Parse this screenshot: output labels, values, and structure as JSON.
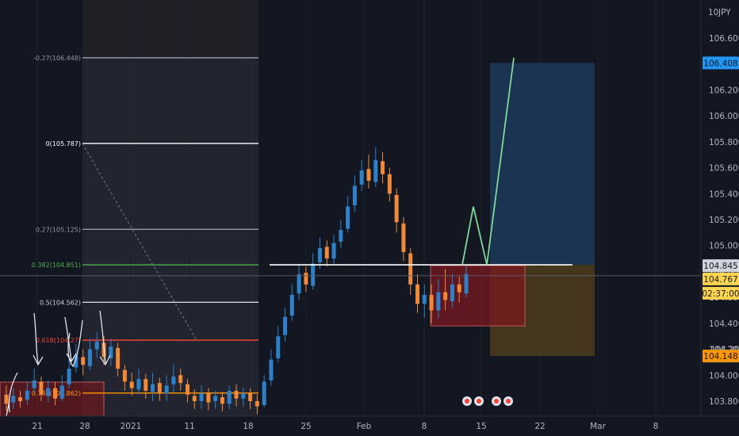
{
  "chart_data": {
    "type": "candlestick",
    "symbol_currency": "JPY",
    "price_axis": {
      "min": 103.7,
      "max": 106.85,
      "ticks": [
        "106.600",
        "106.400",
        "106.200",
        "106.000",
        "105.800",
        "105.600",
        "105.400",
        "105.200",
        "105.000",
        "104.800",
        "104.600",
        "104.400",
        "104.200",
        "104.000",
        "103.800"
      ],
      "labels": {
        "target": {
          "text": "106.408",
          "value": 106.408,
          "color": "#2196f3"
        },
        "level": {
          "text": "104.845",
          "value": 104.845,
          "color": "#d1d4dc"
        },
        "last": {
          "text": "104.767",
          "value": 104.767,
          "color": "#ffd54f"
        },
        "countdown": {
          "text": "02:37:00",
          "color": "#ffd54f"
        },
        "stop": {
          "text": "104.148",
          "value": 104.148,
          "color": "#ff9800"
        },
        "top_partial": "10",
        "hidden_tick": "104.200"
      }
    },
    "time_axis": {
      "ticks": [
        "21",
        "28",
        "2021",
        "11",
        "18",
        "25",
        "Feb",
        "8",
        "15",
        "22",
        "Mar",
        "8"
      ]
    },
    "fibonacci": [
      {
        "label": "-0.27(106.448)",
        "value": 106.448,
        "color": "#9598a1"
      },
      {
        "label": "0(105.787)",
        "value": 105.787,
        "color": "#ffffff"
      },
      {
        "label": "0.27(105.125)",
        "value": 105.125,
        "color": "#9598a1"
      },
      {
        "label": "0.382(104.851)",
        "value": 104.851,
        "color": "#4caf50"
      },
      {
        "label": "0.5(104.562)",
        "value": 104.562,
        "color": "#d1d4dc"
      },
      {
        "label": "0.618(104.27)",
        "value": 104.27,
        "color": "#f44336"
      },
      {
        "label": "0.786(103.862)",
        "value": 103.862,
        "color": "#ff9800"
      }
    ],
    "horizontal_level": 104.851,
    "position": {
      "entry": 104.851,
      "target": 106.408,
      "stop": 104.148
    },
    "projection_path": [
      104.851,
      105.3,
      104.851,
      106.448
    ],
    "demand_zone": {
      "top": 104.845,
      "bottom": 104.38
    },
    "candles": [
      [
        103.85,
        103.78,
        103.92,
        103.72
      ],
      [
        103.79,
        103.84,
        103.9,
        103.74
      ],
      [
        103.83,
        103.8,
        103.88,
        103.75
      ],
      [
        103.81,
        103.88,
        103.95,
        103.77
      ],
      [
        103.9,
        103.96,
        104.05,
        103.86
      ],
      [
        103.95,
        103.85,
        103.99,
        103.8
      ],
      [
        103.84,
        103.9,
        103.96,
        103.79
      ],
      [
        103.9,
        103.82,
        103.95,
        103.77
      ],
      [
        103.82,
        103.92,
        104.0,
        103.8
      ],
      [
        103.93,
        104.05,
        104.12,
        103.9
      ],
      [
        104.06,
        104.15,
        104.24,
        104.02
      ],
      [
        104.14,
        104.08,
        104.2,
        104.0
      ],
      [
        104.07,
        104.2,
        104.28,
        104.04
      ],
      [
        104.2,
        104.26,
        104.33,
        104.13
      ],
      [
        104.25,
        104.14,
        104.3,
        104.08
      ],
      [
        104.13,
        104.22,
        104.28,
        104.07
      ],
      [
        104.21,
        104.05,
        104.25,
        103.99
      ],
      [
        104.04,
        103.95,
        104.08,
        103.88
      ],
      [
        103.95,
        103.9,
        104.02,
        103.84
      ],
      [
        103.89,
        103.97,
        104.05,
        103.85
      ],
      [
        103.97,
        103.88,
        104.01,
        103.82
      ],
      [
        103.87,
        103.93,
        104.02,
        103.8
      ],
      [
        103.94,
        103.86,
        103.98,
        103.8
      ],
      [
        103.86,
        103.92,
        104.0,
        103.8
      ],
      [
        103.93,
        103.99,
        104.08,
        103.87
      ],
      [
        104.0,
        103.94,
        104.05,
        103.88
      ],
      [
        103.93,
        103.85,
        103.97,
        103.79
      ],
      [
        103.84,
        103.8,
        103.89,
        103.74
      ],
      [
        103.8,
        103.86,
        103.92,
        103.74
      ],
      [
        103.86,
        103.79,
        103.9,
        103.73
      ],
      [
        103.8,
        103.84,
        103.88,
        103.74
      ],
      [
        103.83,
        103.78,
        103.87,
        103.72
      ],
      [
        103.78,
        103.88,
        103.92,
        103.74
      ],
      [
        103.88,
        103.82,
        103.93,
        103.76
      ],
      [
        103.82,
        103.86,
        103.9,
        103.76
      ],
      [
        103.86,
        103.8,
        103.9,
        103.74
      ],
      [
        103.8,
        103.76,
        103.85,
        103.7
      ],
      [
        103.77,
        103.95,
        104.0,
        103.75
      ],
      [
        103.96,
        104.12,
        104.2,
        103.92
      ],
      [
        104.13,
        104.3,
        104.38,
        104.1
      ],
      [
        104.31,
        104.45,
        104.52,
        104.26
      ],
      [
        104.46,
        104.62,
        104.7,
        104.42
      ],
      [
        104.63,
        104.78,
        104.86,
        104.58
      ],
      [
        104.79,
        104.7,
        104.84,
        104.64
      ],
      [
        104.69,
        104.86,
        104.94,
        104.66
      ],
      [
        104.87,
        104.98,
        105.06,
        104.82
      ],
      [
        104.99,
        104.9,
        105.04,
        104.84
      ],
      [
        104.9,
        105.02,
        105.08,
        104.86
      ],
      [
        105.03,
        105.12,
        105.2,
        104.98
      ],
      [
        105.13,
        105.3,
        105.38,
        105.1
      ],
      [
        105.31,
        105.46,
        105.54,
        105.26
      ],
      [
        105.47,
        105.58,
        105.66,
        105.42
      ],
      [
        105.59,
        105.5,
        105.7,
        105.44
      ],
      [
        105.49,
        105.66,
        105.76,
        105.45
      ],
      [
        105.65,
        105.55,
        105.72,
        105.48
      ],
      [
        105.55,
        105.4,
        105.6,
        105.34
      ],
      [
        105.39,
        105.18,
        105.44,
        105.1
      ],
      [
        105.17,
        104.95,
        105.22,
        104.88
      ],
      [
        104.94,
        104.7,
        104.98,
        104.62
      ],
      [
        104.7,
        104.55,
        104.78,
        104.48
      ],
      [
        104.55,
        104.62,
        104.7,
        104.44
      ],
      [
        104.62,
        104.5,
        104.7,
        104.4
      ],
      [
        104.5,
        104.64,
        104.74,
        104.44
      ],
      [
        104.64,
        104.58,
        104.82,
        104.5
      ],
      [
        104.57,
        104.7,
        104.78,
        104.52
      ],
      [
        104.7,
        104.64,
        104.76,
        104.56
      ],
      [
        104.63,
        104.78,
        104.84,
        104.6
      ]
    ]
  }
}
